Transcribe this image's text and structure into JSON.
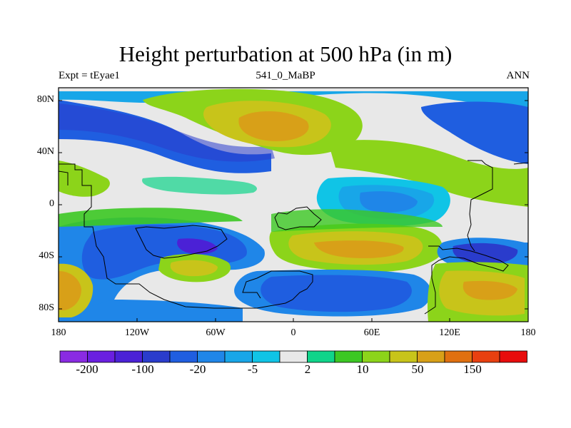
{
  "title": "Height perturbation at 500 hPa (in m)",
  "subtitle_left": "Expt = tEyae1",
  "subtitle_center": "541_0_MaBP",
  "subtitle_right": "ANN",
  "map": {
    "projection": "cylindrical-equidistant",
    "lon_range": [
      -180,
      180
    ],
    "lat_range": [
      -90,
      90
    ],
    "x_ticks": [
      "180",
      "120W",
      "60W",
      "0",
      "60E",
      "120E",
      "180"
    ],
    "y_ticks": [
      "80N",
      "40N",
      "0",
      "40S",
      "80S"
    ],
    "field": "500 hPa height perturbation (m)",
    "features": [
      {
        "type": "high",
        "region": "north Pacific / Eurasia ~60N",
        "approx_value": 100
      },
      {
        "type": "low",
        "region": "north Atlantic ~50N",
        "approx_value": -20
      },
      {
        "type": "low",
        "region": "tropical Atlantic / Africa ~0",
        "approx_value": -10
      },
      {
        "type": "high",
        "region": "southern Atlantic-Indian ~40S",
        "approx_value": 60
      },
      {
        "type": "low",
        "region": "southern Pacific ~40S",
        "approx_value": -40
      },
      {
        "type": "low",
        "region": "southwest Pacific ~40S",
        "approx_value": -60
      },
      {
        "type": "high",
        "region": "south Pacific ~60S",
        "approx_value": 70
      }
    ]
  },
  "colorbar": {
    "colors": [
      "#8a2be2",
      "#6a1fe0",
      "#4b21d6",
      "#2a3ccc",
      "#1f5ee0",
      "#1f86e8",
      "#18a6e8",
      "#10c4e6",
      "#e8e8e8",
      "#10d48a",
      "#3cc823",
      "#8cd41a",
      "#c8c41a",
      "#d8a018",
      "#e07010",
      "#e84010",
      "#e80c0c"
    ],
    "labels": [
      "-200",
      "-100",
      "-20",
      "-5",
      "2",
      "10",
      "50",
      "150"
    ]
  }
}
